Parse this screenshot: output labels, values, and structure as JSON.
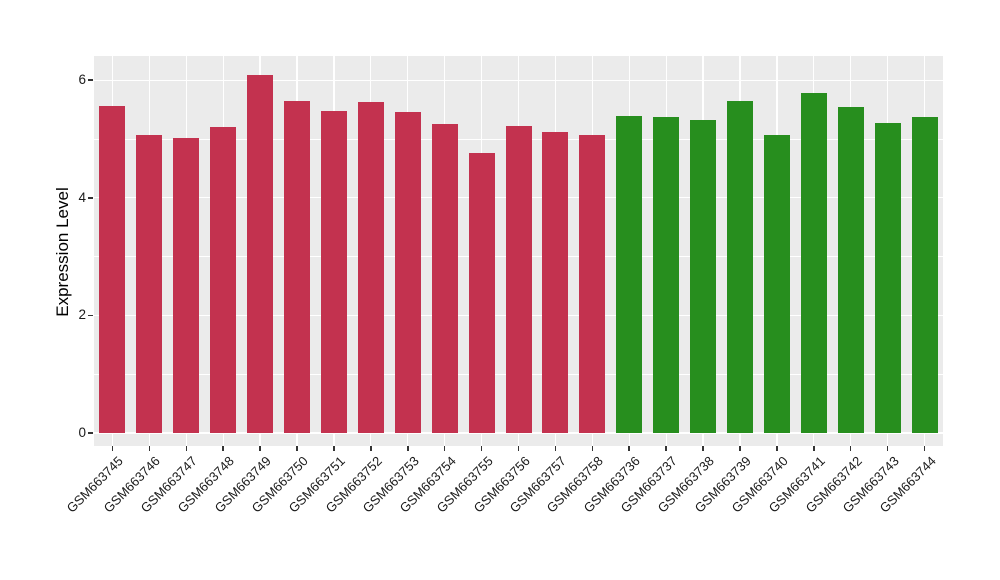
{
  "chart_data": {
    "type": "bar",
    "title": "",
    "xlabel": "",
    "ylabel": "Expression Level",
    "ylim": [
      0,
      6.4
    ],
    "yticks": [
      0,
      2,
      4,
      6
    ],
    "yticks_minor": [
      1,
      3,
      5
    ],
    "grid": "white major and minor gridlines on gray panel, vertical gridline per category",
    "legend_position": "none",
    "categories": [
      "GSM663745",
      "GSM663746",
      "GSM663747",
      "GSM663748",
      "GSM663749",
      "GSM663750",
      "GSM663751",
      "GSM663752",
      "GSM663753",
      "GSM663754",
      "GSM663755",
      "GSM663756",
      "GSM663757",
      "GSM663758",
      "GSM663736",
      "GSM663737",
      "GSM663738",
      "GSM663739",
      "GSM663740",
      "GSM663741",
      "GSM663742",
      "GSM663743",
      "GSM663744"
    ],
    "values": [
      5.56,
      5.07,
      5.02,
      5.2,
      6.08,
      5.65,
      5.47,
      5.63,
      5.46,
      5.26,
      4.77,
      5.22,
      5.12,
      5.07,
      5.39,
      5.38,
      5.32,
      5.64,
      5.06,
      5.79,
      5.54,
      5.28,
      5.37
    ],
    "bar_colors": [
      "#C3324F",
      "#C3324F",
      "#C3324F",
      "#C3324F",
      "#C3324F",
      "#C3324F",
      "#C3324F",
      "#C3324F",
      "#C3324F",
      "#C3324F",
      "#C3324F",
      "#C3324F",
      "#C3324F",
      "#C3324F",
      "#278E1E",
      "#278E1E",
      "#278E1E",
      "#278E1E",
      "#278E1E",
      "#278E1E",
      "#278E1E",
      "#278E1E",
      "#278E1E"
    ],
    "groups": [
      {
        "name": "red-group",
        "color": "#C3324F",
        "first": "GSM663745",
        "last": "GSM663758",
        "count": 14
      },
      {
        "name": "green-group",
        "color": "#278E1E",
        "first": "GSM663736",
        "last": "GSM663744",
        "count": 9
      }
    ]
  },
  "theme": {
    "background": "#FFFFFF",
    "panel_background": "#EBEBEB",
    "grid_color": "#FFFFFF",
    "tick_color": "#333333",
    "label_color": "#1A1A1A"
  }
}
